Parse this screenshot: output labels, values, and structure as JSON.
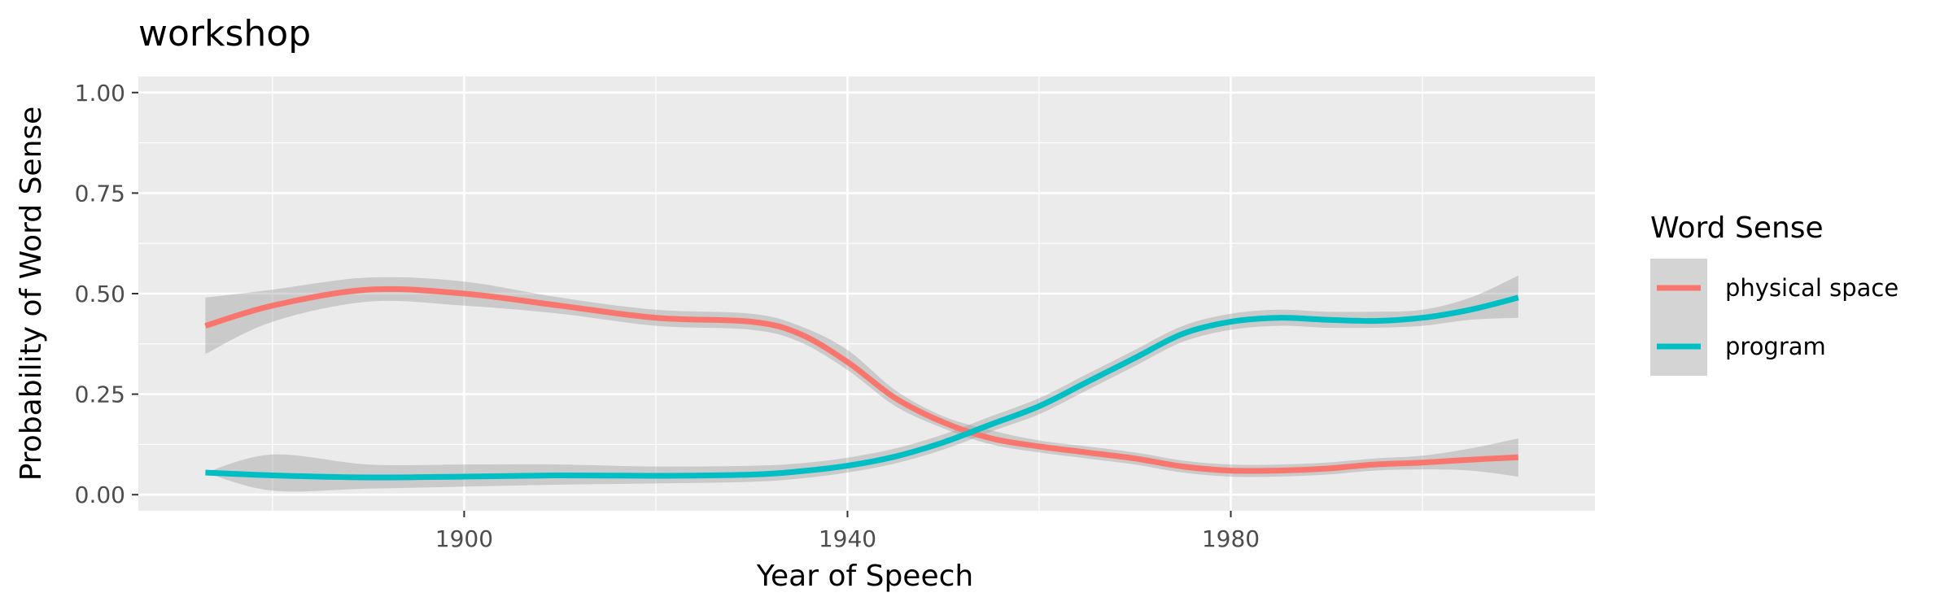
{
  "chart_data": {
    "type": "line",
    "title": "workshop",
    "xlabel": "Year of Speech",
    "ylabel": "Probability of Word Sense",
    "xlim": [
      1866,
      2018
    ],
    "ylim": [
      -0.04,
      1.04
    ],
    "x_ticks": [
      1900,
      1940,
      1980
    ],
    "x_tick_labels": [
      "1900",
      "1940",
      "1980"
    ],
    "x_minor_ticks": [
      1880,
      1920,
      1960,
      2000
    ],
    "y_ticks": [
      0,
      0.25,
      0.5,
      0.75,
      1.0
    ],
    "y_tick_labels": [
      "0.00",
      "0.25",
      "0.50",
      "0.75",
      "1.00"
    ],
    "grid": true,
    "legend": {
      "title": "Word Sense",
      "placement": "right"
    },
    "series": [
      {
        "name": "physical space",
        "color": "#F8766D",
        "x": [
          1873,
          1880,
          1890,
          1900,
          1910,
          1920,
          1930,
          1935,
          1940,
          1945,
          1950,
          1955,
          1960,
          1965,
          1970,
          1975,
          1980,
          1985,
          1990,
          1995,
          2000,
          2005,
          2010
        ],
        "y": [
          0.42,
          0.47,
          0.51,
          0.5,
          0.47,
          0.44,
          0.43,
          0.4,
          0.33,
          0.24,
          0.18,
          0.14,
          0.12,
          0.105,
          0.09,
          0.07,
          0.06,
          0.06,
          0.065,
          0.075,
          0.08,
          0.087,
          0.093
        ],
        "ci_low": [
          0.35,
          0.43,
          0.48,
          0.47,
          0.45,
          0.42,
          0.41,
          0.38,
          0.31,
          0.22,
          0.165,
          0.125,
          0.105,
          0.09,
          0.075,
          0.055,
          0.045,
          0.045,
          0.05,
          0.06,
          0.063,
          0.06,
          0.045
        ],
        "ci_high": [
          0.49,
          0.51,
          0.54,
          0.53,
          0.49,
          0.46,
          0.45,
          0.42,
          0.36,
          0.26,
          0.195,
          0.16,
          0.135,
          0.12,
          0.105,
          0.085,
          0.075,
          0.075,
          0.08,
          0.09,
          0.097,
          0.115,
          0.14
        ]
      },
      {
        "name": "program",
        "color": "#00BFC4",
        "x": [
          1873,
          1880,
          1890,
          1900,
          1910,
          1920,
          1930,
          1935,
          1940,
          1945,
          1950,
          1955,
          1960,
          1965,
          1970,
          1975,
          1980,
          1985,
          1990,
          1995,
          2000,
          2005,
          2010
        ],
        "y": [
          0.055,
          0.048,
          0.043,
          0.045,
          0.048,
          0.047,
          0.05,
          0.058,
          0.072,
          0.095,
          0.13,
          0.175,
          0.22,
          0.28,
          0.34,
          0.4,
          0.43,
          0.44,
          0.435,
          0.432,
          0.44,
          0.46,
          0.49
        ],
        "ci_low": [
          0.055,
          0.01,
          0.015,
          0.02,
          0.025,
          0.028,
          0.032,
          0.04,
          0.055,
          0.078,
          0.112,
          0.157,
          0.2,
          0.26,
          0.32,
          0.38,
          0.41,
          0.42,
          0.415,
          0.415,
          0.42,
          0.435,
          0.44
        ],
        "ci_high": [
          0.055,
          0.1,
          0.075,
          0.075,
          0.075,
          0.07,
          0.072,
          0.078,
          0.092,
          0.115,
          0.15,
          0.195,
          0.24,
          0.3,
          0.36,
          0.42,
          0.45,
          0.46,
          0.455,
          0.455,
          0.46,
          0.49,
          0.545
        ]
      }
    ]
  }
}
